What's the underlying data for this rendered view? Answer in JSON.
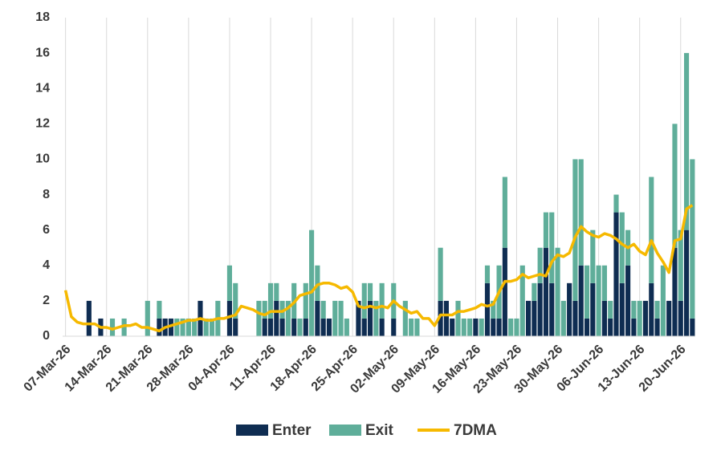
{
  "chart_data": {
    "type": "bar",
    "stacked": true,
    "grid": "x",
    "categories": [
      "07-Mar-26",
      null,
      null,
      null,
      null,
      null,
      null,
      "14-Mar-26",
      null,
      null,
      null,
      null,
      null,
      null,
      "21-Mar-26",
      null,
      null,
      null,
      null,
      null,
      null,
      "28-Mar-26",
      null,
      null,
      null,
      null,
      null,
      null,
      "04-Apr-26",
      null,
      null,
      null,
      null,
      null,
      null,
      "11-Apr-26",
      null,
      null,
      null,
      null,
      null,
      null,
      "18-Apr-26",
      null,
      null,
      null,
      null,
      null,
      null,
      "25-Apr-26",
      null,
      null,
      null,
      null,
      null,
      null,
      "02-May-26",
      null,
      null,
      null,
      null,
      null,
      null,
      "09-May-26",
      null,
      null,
      null,
      null,
      null,
      null,
      "16-May-26",
      null,
      null,
      null,
      null,
      null,
      null,
      "23-May-26",
      null,
      null,
      null,
      null,
      null,
      null,
      "30-May-26",
      null,
      null,
      null,
      null,
      null,
      null,
      "06-Jun-26",
      null,
      null,
      null,
      null,
      null,
      null,
      "13-Jun-26",
      null,
      null,
      null,
      null,
      null,
      null,
      "20-Jun-26",
      null,
      null
    ],
    "series": [
      {
        "name": "Enter",
        "type": "bar",
        "color": "#0f2d52",
        "values": [
          0,
          0,
          0,
          0,
          2,
          0,
          1,
          0,
          0,
          0,
          0,
          0,
          0,
          0,
          0,
          0,
          1,
          1,
          1,
          0,
          0,
          0,
          0,
          2,
          0,
          0,
          0,
          0,
          2,
          1,
          0,
          0,
          0,
          0,
          1,
          1,
          2,
          1,
          0,
          1,
          0,
          1,
          0,
          2,
          1,
          1,
          0,
          0,
          0,
          0,
          2,
          1,
          2,
          0,
          1,
          0,
          1,
          0,
          0,
          0,
          0,
          0,
          0,
          0,
          2,
          2,
          1,
          0,
          0,
          0,
          1,
          0,
          3,
          1,
          1,
          5,
          0,
          0,
          0,
          2,
          2,
          3,
          5,
          3,
          0,
          0,
          3,
          2,
          4,
          1,
          3,
          0,
          2,
          1,
          7,
          3,
          4,
          1,
          0,
          2,
          3,
          1,
          0,
          2,
          5,
          2,
          6,
          1
        ]
      },
      {
        "name": "Exit",
        "type": "bar",
        "color": "#5fae9a",
        "values": [
          0,
          0,
          0,
          0,
          0,
          0,
          0,
          0,
          1,
          0,
          1,
          0,
          0,
          0,
          2,
          0,
          1,
          0,
          0,
          1,
          1,
          1,
          1,
          0,
          1,
          1,
          2,
          0,
          2,
          2,
          0,
          0,
          0,
          2,
          1,
          2,
          1,
          1,
          2,
          2,
          1,
          2,
          6,
          2,
          1,
          0,
          2,
          2,
          1,
          0,
          0,
          2,
          1,
          2,
          2,
          0,
          2,
          0,
          2,
          1,
          1,
          0,
          0,
          0,
          3,
          0,
          0,
          2,
          1,
          1,
          0,
          1,
          1,
          1,
          3,
          4,
          1,
          1,
          4,
          0,
          1,
          2,
          2,
          4,
          5,
          2,
          0,
          8,
          6,
          3,
          3,
          4,
          2,
          1,
          1,
          4,
          2,
          1,
          2,
          0,
          6,
          1,
          4,
          0,
          7,
          4,
          10,
          9
        ]
      },
      {
        "name": "7DMA",
        "type": "line",
        "color": "#f6b900",
        "values": [
          2.6,
          1.1,
          0.8,
          0.7,
          0.7,
          0.7,
          0.5,
          0.5,
          0.4,
          0.5,
          0.6,
          0.6,
          0.7,
          0.5,
          0.5,
          0.4,
          0.3,
          0.5,
          0.6,
          0.7,
          0.8,
          0.9,
          0.9,
          1.0,
          0.9,
          0.9,
          1.0,
          1.0,
          1.1,
          1.2,
          1.7,
          1.6,
          1.5,
          1.3,
          1.2,
          1.4,
          1.4,
          1.4,
          1.6,
          1.9,
          2.3,
          2.4,
          2.5,
          2.9,
          3.0,
          3.0,
          2.9,
          2.7,
          2.8,
          2.5,
          1.7,
          1.6,
          1.7,
          1.6,
          1.7,
          1.6,
          2.0,
          1.7,
          1.5,
          1.3,
          1.4,
          1.0,
          1.0,
          0.6,
          1.2,
          1.2,
          1.2,
          1.4,
          1.4,
          1.5,
          1.6,
          1.8,
          1.7,
          1.8,
          2.5,
          3.1,
          3.1,
          3.2,
          3.5,
          3.3,
          3.4,
          3.5,
          3.4,
          4.2,
          4.6,
          4.5,
          4.7,
          5.6,
          6.2,
          5.9,
          5.7,
          5.6,
          5.8,
          5.7,
          5.5,
          5.2,
          5.0,
          5.2,
          4.8,
          4.6,
          5.4,
          4.7,
          4.2,
          3.6,
          5.4,
          5.5,
          7.2,
          7.4
        ]
      }
    ],
    "ylim": [
      0,
      18
    ],
    "yticks": [
      0,
      2,
      4,
      6,
      8,
      10,
      12,
      14,
      16,
      18
    ]
  }
}
